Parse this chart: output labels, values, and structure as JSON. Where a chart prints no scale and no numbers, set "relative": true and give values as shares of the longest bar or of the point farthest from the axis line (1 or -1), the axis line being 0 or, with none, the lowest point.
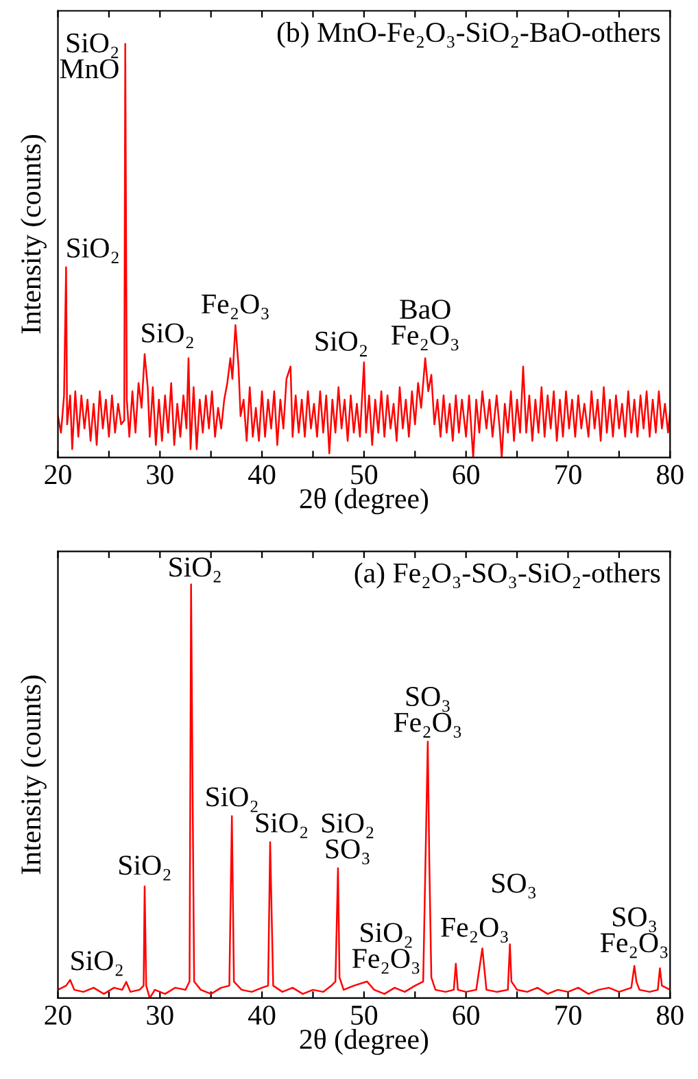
{
  "chart_data": [
    {
      "type": "line",
      "title": "(b) MnO-Fe₂O₃-SiO₂-BaO-others",
      "xlabel": "2θ (degree)",
      "ylabel": "Intensity (counts)",
      "relative": true,
      "tick_labels": "x",
      "grid": false,
      "legend": false,
      "marker": "none",
      "line_style": "solid",
      "xlim": [
        20,
        80
      ],
      "xticks": [
        20,
        {
          "value": 25,
          "label": null
        },
        30,
        {
          "value": 35,
          "label": null
        },
        40,
        {
          "value": 45,
          "label": null
        },
        50,
        {
          "value": 55,
          "label": null
        },
        60,
        {
          "value": 65,
          "label": null
        },
        70,
        {
          "value": 75,
          "label": null
        },
        80
      ],
      "series": [
        {
          "color": "#ff0000",
          "x": [
            20.0,
            20.3,
            20.6,
            20.8,
            20.9,
            21.2,
            21.4,
            21.7,
            22.0,
            22.3,
            22.6,
            22.9,
            23.2,
            23.5,
            23.8,
            24.1,
            24.4,
            24.7,
            25.0,
            25.3,
            25.6,
            25.9,
            26.2,
            26.5,
            26.6,
            26.75,
            27.0,
            27.3,
            27.6,
            27.9,
            28.2,
            28.5,
            28.8,
            29.0,
            29.3,
            29.6,
            29.9,
            30.2,
            30.5,
            30.8,
            31.1,
            31.4,
            31.7,
            32.0,
            32.3,
            32.6,
            32.8,
            33.0,
            33.3,
            33.6,
            33.9,
            34.2,
            34.5,
            34.8,
            35.1,
            35.4,
            35.7,
            36.0,
            36.3,
            36.6,
            36.9,
            37.1,
            37.4,
            37.7,
            37.9,
            38.2,
            38.5,
            38.8,
            39.1,
            39.4,
            39.7,
            40.0,
            40.3,
            40.6,
            40.9,
            41.2,
            41.5,
            41.8,
            42.1,
            42.4,
            42.8,
            43.0,
            43.3,
            43.6,
            43.9,
            44.2,
            44.5,
            44.8,
            45.1,
            45.4,
            45.7,
            46.0,
            46.3,
            46.6,
            46.9,
            47.2,
            47.5,
            47.8,
            48.1,
            48.4,
            48.7,
            49.0,
            49.3,
            49.6,
            50.0,
            50.2,
            50.5,
            50.8,
            51.1,
            51.4,
            51.7,
            52.0,
            52.3,
            52.6,
            52.9,
            53.2,
            53.5,
            53.8,
            54.1,
            54.4,
            54.7,
            55.0,
            55.3,
            55.6,
            56.0,
            56.3,
            56.6,
            56.9,
            57.2,
            57.5,
            57.8,
            58.1,
            58.4,
            58.7,
            59.0,
            59.3,
            59.6,
            60.0,
            60.3,
            60.7,
            61.0,
            61.3,
            61.6,
            62.0,
            62.3,
            62.6,
            63.0,
            63.3,
            63.5,
            63.8,
            64.1,
            64.4,
            64.7,
            65.0,
            65.3,
            65.6,
            65.9,
            66.2,
            66.5,
            66.8,
            67.1,
            67.4,
            67.7,
            68.0,
            68.3,
            68.6,
            68.9,
            69.2,
            69.5,
            69.8,
            70.1,
            70.4,
            70.7,
            71.0,
            71.3,
            71.6,
            72.0,
            72.3,
            72.6,
            72.9,
            73.2,
            73.5,
            73.8,
            74.1,
            74.4,
            74.7,
            75.0,
            75.3,
            75.6,
            75.9,
            76.2,
            76.5,
            76.8,
            77.1,
            77.4,
            77.7,
            78.0,
            78.3,
            78.6,
            78.9,
            79.2,
            79.5,
            79.8,
            80.0
          ],
          "values": [
            0.1,
            0.06,
            0.15,
            0.46,
            0.08,
            0.15,
            0.02,
            0.16,
            0.05,
            0.15,
            0.07,
            0.14,
            0.04,
            0.13,
            0.03,
            0.16,
            0.07,
            0.14,
            0.05,
            0.15,
            0.06,
            0.13,
            0.08,
            0.09,
            1.0,
            0.14,
            0.05,
            0.16,
            0.06,
            0.18,
            0.12,
            0.25,
            0.17,
            0.05,
            0.17,
            0.03,
            0.14,
            0.04,
            0.15,
            0.06,
            0.18,
            0.03,
            0.13,
            0.05,
            0.15,
            0.07,
            0.24,
            0.02,
            0.17,
            0.02,
            0.14,
            0.06,
            0.15,
            0.07,
            0.16,
            0.05,
            0.12,
            0.07,
            0.14,
            0.18,
            0.24,
            0.19,
            0.32,
            0.22,
            0.1,
            0.14,
            0.04,
            0.17,
            0.05,
            0.12,
            0.04,
            0.16,
            0.05,
            0.14,
            0.07,
            0.16,
            0.03,
            0.14,
            0.07,
            0.19,
            0.22,
            0.05,
            0.15,
            0.06,
            0.14,
            0.05,
            0.16,
            0.07,
            0.13,
            0.05,
            0.16,
            0.06,
            0.15,
            0.01,
            0.14,
            0.06,
            0.17,
            0.07,
            0.14,
            0.04,
            0.15,
            0.06,
            0.13,
            0.05,
            0.23,
            0.06,
            0.15,
            0.03,
            0.14,
            0.06,
            0.16,
            0.05,
            0.15,
            0.07,
            0.13,
            0.04,
            0.17,
            0.07,
            0.14,
            0.05,
            0.16,
            0.08,
            0.18,
            0.12,
            0.24,
            0.16,
            0.2,
            0.08,
            0.14,
            0.05,
            0.15,
            0.06,
            0.13,
            0.04,
            0.15,
            0.06,
            0.14,
            0.05,
            0.15,
            0.0,
            0.14,
            0.06,
            0.16,
            0.07,
            0.14,
            0.05,
            0.15,
            0.07,
            0.0,
            0.13,
            0.06,
            0.16,
            0.04,
            0.14,
            0.06,
            0.22,
            0.06,
            0.15,
            0.04,
            0.14,
            0.06,
            0.17,
            0.05,
            0.15,
            0.07,
            0.16,
            0.04,
            0.14,
            0.05,
            0.16,
            0.07,
            0.14,
            0.05,
            0.15,
            0.07,
            0.13,
            0.05,
            0.16,
            0.07,
            0.14,
            0.04,
            0.17,
            0.06,
            0.14,
            0.05,
            0.15,
            0.07,
            0.13,
            0.05,
            0.16,
            0.06,
            0.14,
            0.05,
            0.15,
            0.07,
            0.16,
            0.05,
            0.14,
            0.06,
            0.16,
            0.07,
            0.13,
            0.06,
            0.11
          ]
        }
      ],
      "annotations": [
        {
          "text": "SiO₂",
          "x": 20.8,
          "y": 0.46
        },
        {
          "text": "SiO₂\nMnO",
          "x": 26.6,
          "y": 1.0
        },
        {
          "text": "SiO₂",
          "x": 28.5,
          "y": 0.25
        },
        {
          "text": "Fe₂O₃",
          "x": 37.4,
          "y": 0.32
        },
        {
          "text": "SiO₂",
          "x": 50.0,
          "y": 0.23
        },
        {
          "text": "BaO\nFe₂O₃",
          "x": 56.0,
          "y": 0.24
        }
      ]
    },
    {
      "type": "line",
      "title": "(a) Fe₂O₃-SO₃-SiO₂-others",
      "xlabel": "2θ (degree)",
      "ylabel": "Intensity (counts)",
      "relative": true,
      "tick_labels": "x",
      "grid": false,
      "legend": false,
      "marker": "none",
      "line_style": "solid",
      "xlim": [
        20,
        80
      ],
      "xticks": [
        20,
        {
          "value": 25,
          "label": null
        },
        30,
        {
          "value": 35,
          "label": null
        },
        40,
        {
          "value": 45,
          "label": null
        },
        50,
        {
          "value": 55,
          "label": null
        },
        60,
        {
          "value": 65,
          "label": null
        },
        70,
        {
          "value": 75,
          "label": null
        },
        80
      ],
      "series": [
        {
          "color": "#ff0000",
          "x": [
            20,
            20.8,
            21.2,
            21.6,
            22.5,
            23.5,
            24.5,
            25.5,
            26.3,
            26.7,
            27.1,
            28.0,
            28.4,
            28.5,
            28.65,
            29.0,
            29.5,
            30.5,
            31.5,
            32.5,
            32.9,
            33.05,
            33.2,
            33.35,
            34,
            35,
            36,
            36.8,
            37.05,
            37.25,
            38,
            39,
            40,
            40.6,
            40.8,
            40.95,
            41.1,
            42,
            43,
            44,
            45,
            46,
            46.8,
            47.2,
            47.45,
            47.6,
            48,
            49,
            50.3,
            51,
            52,
            53,
            54,
            55,
            55.8,
            56.25,
            56.4,
            56.6,
            57,
            58,
            58.8,
            59.0,
            59.2,
            60,
            61,
            61.6,
            61.8,
            62.0,
            63,
            64.1,
            64.3,
            64.45,
            65,
            66,
            67,
            68,
            69,
            70,
            71,
            72,
            73,
            74,
            75,
            76.2,
            76.5,
            76.7,
            77,
            78,
            78.8,
            79.0,
            79.2,
            80
          ],
          "values": [
            0.02,
            0.03,
            0.044,
            0.02,
            0.015,
            0.025,
            0.01,
            0.025,
            0.02,
            0.039,
            0.015,
            0.02,
            0.03,
            0.27,
            0.03,
            0.0,
            0.02,
            0.01,
            0.025,
            0.02,
            0.04,
            1.0,
            0.5,
            0.04,
            0.02,
            0.01,
            0.025,
            0.03,
            0.44,
            0.04,
            0.02,
            0.015,
            0.025,
            0.03,
            0.377,
            0.2,
            0.03,
            0.015,
            0.025,
            0.01,
            0.02,
            0.015,
            0.03,
            0.04,
            0.314,
            0.05,
            0.02,
            0.03,
            0.04,
            0.02,
            0.01,
            0.025,
            0.015,
            0.03,
            0.04,
            0.62,
            0.33,
            0.05,
            0.02,
            0.015,
            0.02,
            0.083,
            0.02,
            0.015,
            0.02,
            0.12,
            0.07,
            0.02,
            0.015,
            0.02,
            0.13,
            0.04,
            0.02,
            0.015,
            0.025,
            0.01,
            0.02,
            0.015,
            0.025,
            0.01,
            0.02,
            0.025,
            0.015,
            0.025,
            0.078,
            0.04,
            0.02,
            0.015,
            0.02,
            0.072,
            0.03,
            0.02
          ]
        }
      ],
      "annotations": [
        {
          "text": "SiO₂",
          "x": 21.2,
          "y": 0.044
        },
        {
          "text": "SiO₂",
          "x": 28.5,
          "y": 0.27
        },
        {
          "text": "SiO₂",
          "x": 33.05,
          "y": 1.0
        },
        {
          "text": "SiO₂",
          "x": 37.05,
          "y": 0.44
        },
        {
          "text": "SiO₂",
          "x": 40.8,
          "y": 0.377
        },
        {
          "text": "SiO₂\nSO₃",
          "x": 47.45,
          "y": 0.314
        },
        {
          "text": "SiO₂\nFe₂O₃",
          "x": 50.3,
          "y": 0.04
        },
        {
          "text": "SO₃\nFe₂O₃",
          "x": 56.25,
          "y": 0.62
        },
        {
          "text": "Fe₂O₃",
          "x": 61.6,
          "y": 0.12
        },
        {
          "text": "SO₃",
          "x": 64.3,
          "y": 0.13
        },
        {
          "text": "SO₃\nFe₂O₃",
          "x": 76.5,
          "y": 0.078
        }
      ]
    }
  ]
}
